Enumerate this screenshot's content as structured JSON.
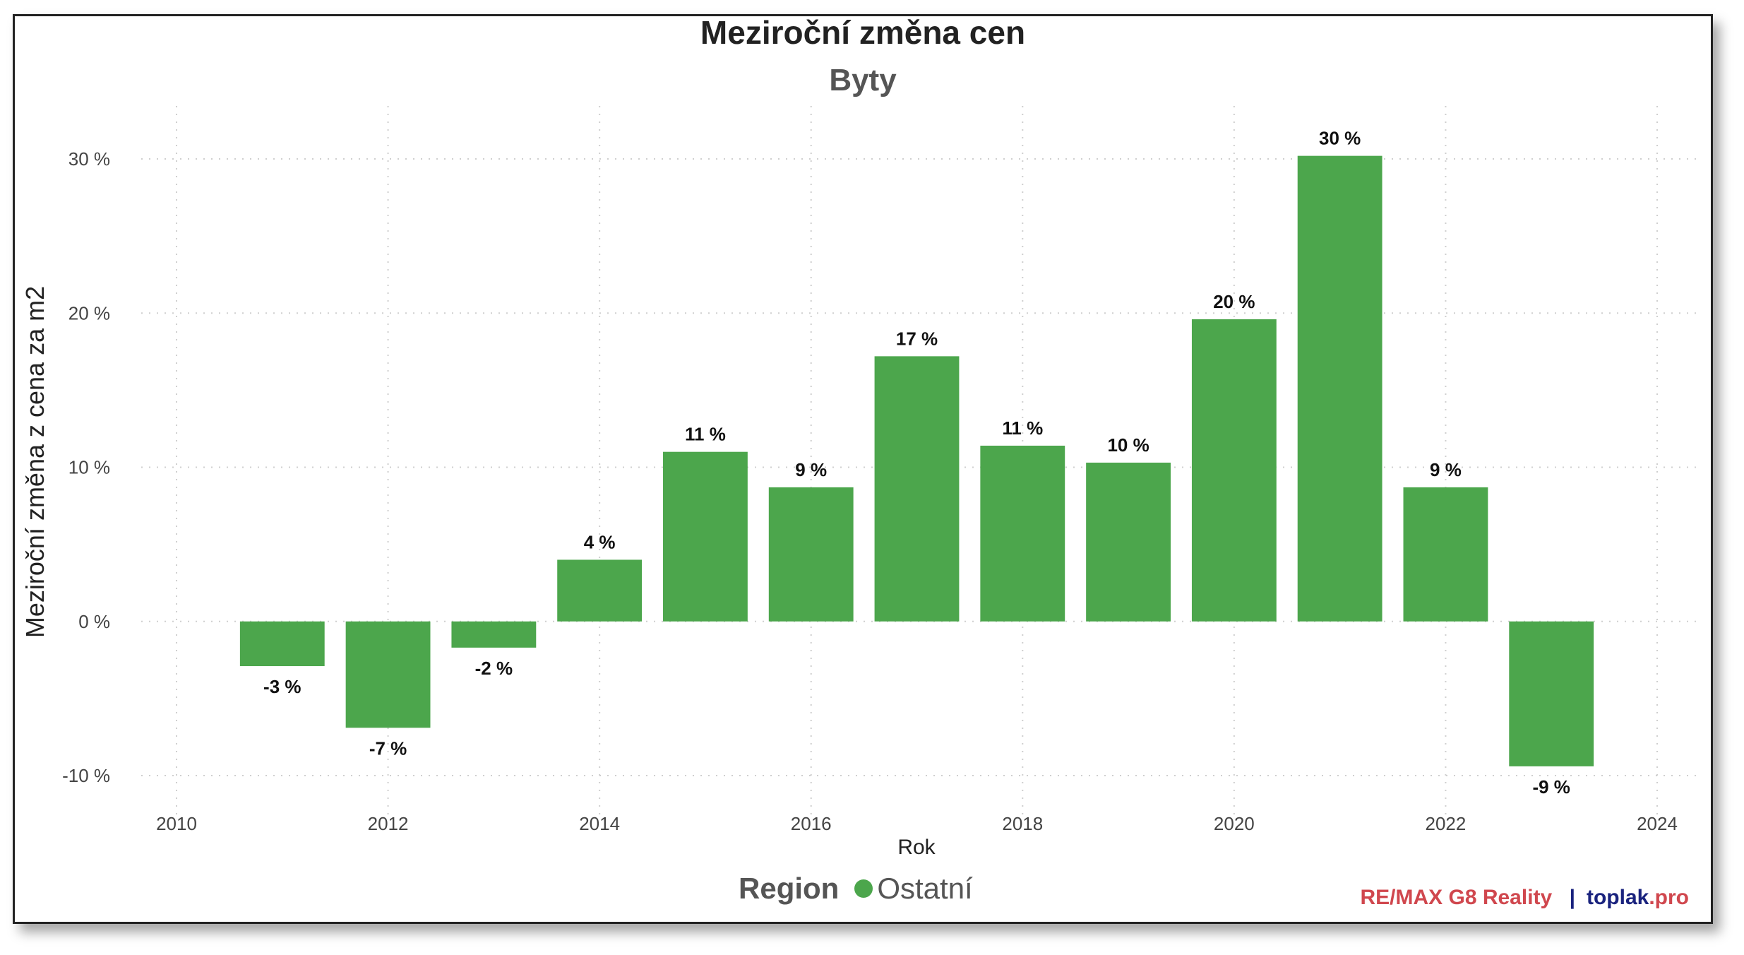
{
  "colors": {
    "bar": "#4CA64C",
    "grid": "#cfcfcf",
    "credit_brand": "#d0474e",
    "credit_sep": "#1a237e",
    "credit_site": "#1a237e",
    "credit_site_suffix": "#d0474e"
  },
  "legend": {
    "title": "Region",
    "items": [
      {
        "label": "Ostatní",
        "color": "#4CA64C"
      }
    ]
  },
  "credit": {
    "brand": "RE/MAX G8 Reality",
    "separator": "|",
    "site_name": "toplak",
    "site_suffix": ".pro"
  },
  "chart_data": {
    "type": "bar",
    "title": "Meziroční změna cen",
    "subtitle": "Byty",
    "xlabel": "Rok",
    "ylabel": "Meziroční změna z cena za m2",
    "x": [
      2011,
      2012,
      2013,
      2014,
      2015,
      2016,
      2017,
      2018,
      2019,
      2020,
      2021,
      2022,
      2023
    ],
    "values": [
      -2.9,
      -6.9,
      -1.7,
      4.0,
      11.0,
      8.7,
      17.2,
      11.4,
      10.3,
      19.6,
      30.2,
      8.7,
      -9.4
    ],
    "data_labels": [
      "-3 %",
      "-7 %",
      "-2 %",
      "4 %",
      "11 %",
      "9 %",
      "17 %",
      "11 %",
      "10 %",
      "20 %",
      "30 %",
      "9 %",
      "-9 %"
    ],
    "xlim": [
      2010,
      2024
    ],
    "ylim": [
      -10,
      30
    ],
    "x_ticks": [
      "2010",
      "2012",
      "2014",
      "2016",
      "2018",
      "2020",
      "2022",
      "2024"
    ],
    "y_ticks": [
      "-10 %",
      "0 %",
      "10 %",
      "20 %",
      "30 %"
    ],
    "grid": true,
    "legend_position": "bottom"
  }
}
